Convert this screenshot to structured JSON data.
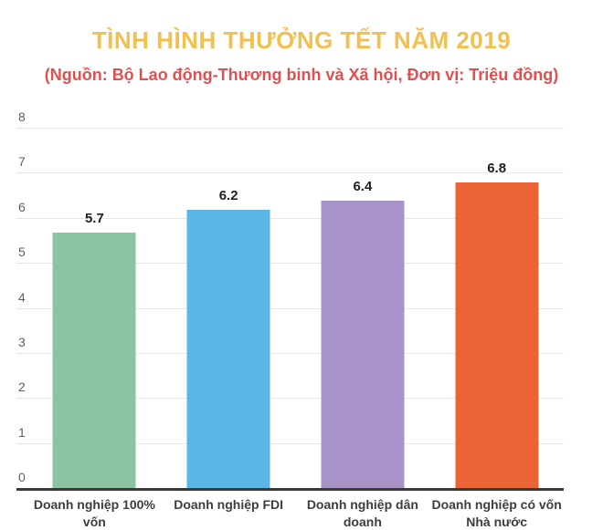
{
  "colors": {
    "title": "#F1C04F",
    "subtitle": "#E15050",
    "axis_line": "#3a3a3a",
    "gridline": "#e7e7e7",
    "ytick_text": "#5f5f5f",
    "value_label_text": "#1f1f1f",
    "xlabel_text": "#3d3d3d",
    "background": "#ffffff"
  },
  "chart_data": {
    "type": "bar",
    "title": "TÌNH HÌNH THƯỞNG TẾT NĂM 2019",
    "subtitle": "(Nguồn: Bộ Lao động-Thương binh và Xã hội, Đơn vị: Triệu đồng)",
    "categories": [
      "Doanh nghiệp 100% vốn Nhà nước",
      "Doanh nghiệp FDI",
      "Doanh nghiệp dân doanh",
      "Doanh nghiệp có vốn Nhà nước"
    ],
    "category_lines": [
      [
        "Doanh nghiệp 100% vốn",
        "Nhà nước"
      ],
      [
        "Doanh nghiệp FDI"
      ],
      [
        "Doanh nghiệp dân",
        "doanh"
      ],
      [
        "Doanh nghiệp có vốn",
        "Nhà nước"
      ]
    ],
    "values": [
      5.7,
      6.2,
      6.4,
      6.8
    ],
    "value_labels": [
      "5.7",
      "6.2",
      "6.4",
      "6.8"
    ],
    "bar_colors": [
      "#8bc4a3",
      "#5bb5e6",
      "#a893c9",
      "#ec6435"
    ],
    "xlabel": "",
    "ylabel": "",
    "ylim": [
      0,
      8
    ],
    "ytick_step": 1,
    "ytick_labels": [
      "0",
      "1",
      "2",
      "3",
      "4",
      "5",
      "6",
      "7",
      "8"
    ],
    "grid": true,
    "legend": "none",
    "data_labels": true
  }
}
